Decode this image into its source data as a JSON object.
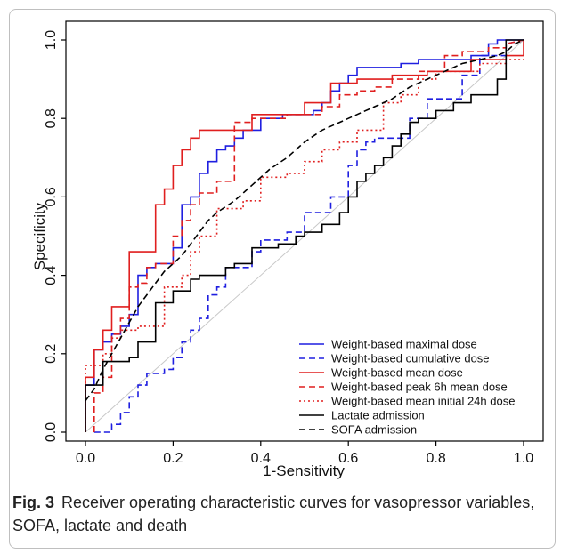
{
  "caption": {
    "label": "Fig. 3",
    "text": "Receiver operating characteristic curves for vasopressor variables, SOFA, lactate and death"
  },
  "chart_data": {
    "type": "line",
    "title": "",
    "xlabel": "1-Sensitivity",
    "ylabel": "Specificity",
    "xlim": [
      0,
      1
    ],
    "ylim": [
      0,
      1
    ],
    "xticks": [
      "0.0",
      "0.2",
      "0.4",
      "0.6",
      "0.8",
      "1.0"
    ],
    "yticks": [
      "0.0",
      "0.2",
      "0.4",
      "0.6",
      "0.8",
      "1.0"
    ],
    "grid": false,
    "legend_position": "bottom-right",
    "reference_line": {
      "x": [
        0,
        1
      ],
      "y": [
        0,
        1
      ],
      "color": "#c8c8c8"
    },
    "series": [
      {
        "name": "Weight-based maximal dose",
        "color": "#1f1fe0",
        "dash": "solid",
        "x": [
          0,
          0,
          0.02,
          0.02,
          0.04,
          0.04,
          0.06,
          0.06,
          0.08,
          0.08,
          0.1,
          0.1,
          0.12,
          0.12,
          0.14,
          0.14,
          0.16,
          0.16,
          0.2,
          0.2,
          0.22,
          0.22,
          0.24,
          0.24,
          0.26,
          0.26,
          0.28,
          0.28,
          0.3,
          0.3,
          0.32,
          0.32,
          0.34,
          0.34,
          0.36,
          0.36,
          0.4,
          0.4,
          0.45,
          0.45,
          0.52,
          0.52,
          0.54,
          0.54,
          0.56,
          0.56,
          0.58,
          0.58,
          0.6,
          0.6,
          0.62,
          0.62,
          0.65,
          0.65,
          0.72,
          0.72,
          0.76,
          0.76,
          0.88,
          0.88,
          0.92,
          0.92,
          0.94,
          0.94,
          1.0
        ],
        "y": [
          0,
          0.12,
          0.12,
          0.21,
          0.21,
          0.23,
          0.23,
          0.25,
          0.25,
          0.27,
          0.27,
          0.3,
          0.3,
          0.4,
          0.4,
          0.42,
          0.42,
          0.43,
          0.43,
          0.47,
          0.47,
          0.58,
          0.58,
          0.6,
          0.6,
          0.66,
          0.66,
          0.69,
          0.69,
          0.72,
          0.72,
          0.73,
          0.73,
          0.75,
          0.75,
          0.77,
          0.77,
          0.8,
          0.8,
          0.81,
          0.81,
          0.82,
          0.82,
          0.84,
          0.84,
          0.87,
          0.87,
          0.89,
          0.89,
          0.91,
          0.91,
          0.93,
          0.93,
          0.93,
          0.93,
          0.94,
          0.94,
          0.95,
          0.95,
          0.96,
          0.96,
          0.99,
          0.99,
          1.0,
          1.0
        ]
      },
      {
        "name": "Weight-based cumulative dose",
        "color": "#1f1fe0",
        "dash": "dashed",
        "x": [
          0.02,
          0.02,
          0.06,
          0.06,
          0.08,
          0.08,
          0.1,
          0.1,
          0.12,
          0.12,
          0.14,
          0.14,
          0.18,
          0.18,
          0.2,
          0.2,
          0.22,
          0.22,
          0.24,
          0.24,
          0.26,
          0.26,
          0.28,
          0.28,
          0.3,
          0.3,
          0.32,
          0.32,
          0.38,
          0.38,
          0.4,
          0.4,
          0.46,
          0.46,
          0.5,
          0.5,
          0.56,
          0.56,
          0.6,
          0.6,
          0.62,
          0.62,
          0.64,
          0.64,
          0.66,
          0.66,
          0.74,
          0.74,
          0.78,
          0.78,
          0.86,
          0.86,
          0.9,
          0.9,
          0.96,
          0.96,
          1.0
        ],
        "y": [
          0,
          0.0,
          0.0,
          0.02,
          0.02,
          0.05,
          0.05,
          0.09,
          0.09,
          0.12,
          0.12,
          0.15,
          0.15,
          0.16,
          0.16,
          0.19,
          0.19,
          0.23,
          0.23,
          0.26,
          0.26,
          0.29,
          0.29,
          0.35,
          0.35,
          0.37,
          0.37,
          0.42,
          0.42,
          0.46,
          0.46,
          0.49,
          0.49,
          0.51,
          0.51,
          0.56,
          0.56,
          0.6,
          0.6,
          0.68,
          0.68,
          0.72,
          0.72,
          0.74,
          0.74,
          0.75,
          0.75,
          0.8,
          0.8,
          0.85,
          0.85,
          0.91,
          0.91,
          0.96,
          0.96,
          0.99,
          1.0
        ]
      },
      {
        "name": "Weight-based mean dose",
        "color": "#e01f1f",
        "dash": "solid",
        "x": [
          0,
          0,
          0.02,
          0.02,
          0.04,
          0.04,
          0.06,
          0.06,
          0.1,
          0.1,
          0.16,
          0.16,
          0.18,
          0.18,
          0.2,
          0.2,
          0.22,
          0.22,
          0.24,
          0.24,
          0.26,
          0.26,
          0.38,
          0.38,
          0.5,
          0.5,
          0.56,
          0.56,
          0.62,
          0.62,
          0.7,
          0.7,
          0.78,
          0.78,
          0.88,
          0.88,
          0.96,
          0.96,
          1.0,
          1.0
        ],
        "y": [
          0,
          0.14,
          0.14,
          0.21,
          0.21,
          0.26,
          0.26,
          0.32,
          0.32,
          0.46,
          0.46,
          0.58,
          0.58,
          0.62,
          0.62,
          0.68,
          0.68,
          0.72,
          0.72,
          0.75,
          0.75,
          0.77,
          0.77,
          0.81,
          0.81,
          0.84,
          0.84,
          0.89,
          0.89,
          0.9,
          0.9,
          0.91,
          0.91,
          0.92,
          0.92,
          0.95,
          0.95,
          0.96,
          0.96,
          1.0
        ]
      },
      {
        "name": "Weight-based peak 6h mean dose",
        "color": "#e01f1f",
        "dash": "dashed",
        "x": [
          0.02,
          0.02,
          0.04,
          0.04,
          0.06,
          0.06,
          0.08,
          0.08,
          0.1,
          0.1,
          0.12,
          0.12,
          0.14,
          0.14,
          0.16,
          0.16,
          0.2,
          0.2,
          0.22,
          0.22,
          0.24,
          0.24,
          0.26,
          0.26,
          0.3,
          0.3,
          0.34,
          0.34,
          0.38,
          0.38,
          0.46,
          0.46,
          0.54,
          0.54,
          0.58,
          0.58,
          0.62,
          0.62,
          0.66,
          0.66,
          0.7,
          0.7,
          0.76,
          0.76,
          0.82,
          0.82,
          0.86,
          0.86,
          0.92,
          0.92,
          0.96,
          0.96,
          1.0
        ],
        "y": [
          0,
          0.1,
          0.1,
          0.14,
          0.14,
          0.25,
          0.25,
          0.29,
          0.29,
          0.37,
          0.37,
          0.38,
          0.38,
          0.42,
          0.42,
          0.43,
          0.43,
          0.5,
          0.5,
          0.54,
          0.54,
          0.58,
          0.58,
          0.61,
          0.61,
          0.64,
          0.64,
          0.79,
          0.79,
          0.8,
          0.8,
          0.81,
          0.81,
          0.83,
          0.83,
          0.86,
          0.86,
          0.87,
          0.87,
          0.88,
          0.88,
          0.9,
          0.9,
          0.92,
          0.92,
          0.96,
          0.96,
          0.97,
          0.97,
          0.98,
          0.98,
          0.99,
          1.0
        ]
      },
      {
        "name": "Weight-based mean initial 24h dose",
        "color": "#e01f1f",
        "dash": "dotted",
        "x": [
          0,
          0,
          0.04,
          0.04,
          0.06,
          0.06,
          0.08,
          0.08,
          0.12,
          0.12,
          0.18,
          0.18,
          0.22,
          0.22,
          0.24,
          0.24,
          0.26,
          0.26,
          0.3,
          0.3,
          0.36,
          0.36,
          0.4,
          0.4,
          0.46,
          0.46,
          0.5,
          0.5,
          0.54,
          0.54,
          0.58,
          0.58,
          0.62,
          0.62,
          0.68,
          0.68,
          0.72,
          0.72,
          0.76,
          0.76,
          0.8,
          0.8,
          0.9,
          0.9,
          0.96,
          0.96,
          1.0
        ],
        "y": [
          0,
          0.17,
          0.17,
          0.2,
          0.2,
          0.24,
          0.24,
          0.26,
          0.26,
          0.27,
          0.27,
          0.37,
          0.37,
          0.4,
          0.4,
          0.46,
          0.46,
          0.5,
          0.5,
          0.57,
          0.57,
          0.59,
          0.59,
          0.65,
          0.65,
          0.66,
          0.66,
          0.69,
          0.69,
          0.72,
          0.72,
          0.74,
          0.74,
          0.77,
          0.77,
          0.84,
          0.84,
          0.86,
          0.86,
          0.9,
          0.9,
          0.92,
          0.92,
          0.94,
          0.94,
          0.95,
          0.95
        ]
      },
      {
        "name": "Lactate admission",
        "color": "#000000",
        "dash": "solid",
        "x": [
          0,
          0,
          0.02,
          0.02,
          0.04,
          0.04,
          0.08,
          0.08,
          0.1,
          0.1,
          0.12,
          0.12,
          0.16,
          0.16,
          0.2,
          0.2,
          0.24,
          0.24,
          0.26,
          0.26,
          0.32,
          0.32,
          0.34,
          0.34,
          0.38,
          0.38,
          0.44,
          0.44,
          0.48,
          0.48,
          0.5,
          0.5,
          0.54,
          0.54,
          0.58,
          0.58,
          0.6,
          0.6,
          0.62,
          0.62,
          0.64,
          0.64,
          0.66,
          0.66,
          0.68,
          0.68,
          0.7,
          0.7,
          0.72,
          0.72,
          0.74,
          0.74,
          0.76,
          0.76,
          0.8,
          0.8,
          0.84,
          0.84,
          0.88,
          0.88,
          0.94,
          0.94,
          0.96,
          0.96,
          1.0
        ],
        "y": [
          0,
          0.12,
          0.12,
          0.12,
          0.12,
          0.18,
          0.18,
          0.18,
          0.18,
          0.19,
          0.19,
          0.23,
          0.23,
          0.33,
          0.33,
          0.36,
          0.36,
          0.39,
          0.39,
          0.4,
          0.4,
          0.42,
          0.42,
          0.43,
          0.43,
          0.47,
          0.47,
          0.48,
          0.48,
          0.5,
          0.5,
          0.51,
          0.51,
          0.53,
          0.53,
          0.56,
          0.56,
          0.6,
          0.6,
          0.64,
          0.64,
          0.66,
          0.66,
          0.68,
          0.68,
          0.7,
          0.7,
          0.73,
          0.73,
          0.76,
          0.76,
          0.79,
          0.79,
          0.8,
          0.8,
          0.82,
          0.82,
          0.84,
          0.84,
          0.86,
          0.86,
          0.9,
          0.9,
          1.0,
          1.0
        ]
      },
      {
        "name": "SOFA admission",
        "color": "#000000",
        "dash": "dashed",
        "x": [
          0,
          0.02,
          0.04,
          0.06,
          0.08,
          0.1,
          0.12,
          0.14,
          0.16,
          0.18,
          0.2,
          0.22,
          0.24,
          0.26,
          0.28,
          0.3,
          0.34,
          0.38,
          0.42,
          0.46,
          0.5,
          0.54,
          0.58,
          0.62,
          0.66,
          0.7,
          0.74,
          0.78,
          0.82,
          0.86,
          0.9,
          0.94,
          0.96,
          0.98,
          1.0
        ],
        "y": [
          0.08,
          0.11,
          0.16,
          0.2,
          0.24,
          0.28,
          0.32,
          0.35,
          0.38,
          0.41,
          0.43,
          0.45,
          0.48,
          0.51,
          0.54,
          0.56,
          0.59,
          0.63,
          0.67,
          0.7,
          0.74,
          0.77,
          0.79,
          0.81,
          0.83,
          0.85,
          0.88,
          0.9,
          0.92,
          0.94,
          0.95,
          0.96,
          0.97,
          0.99,
          1.0
        ]
      }
    ]
  }
}
